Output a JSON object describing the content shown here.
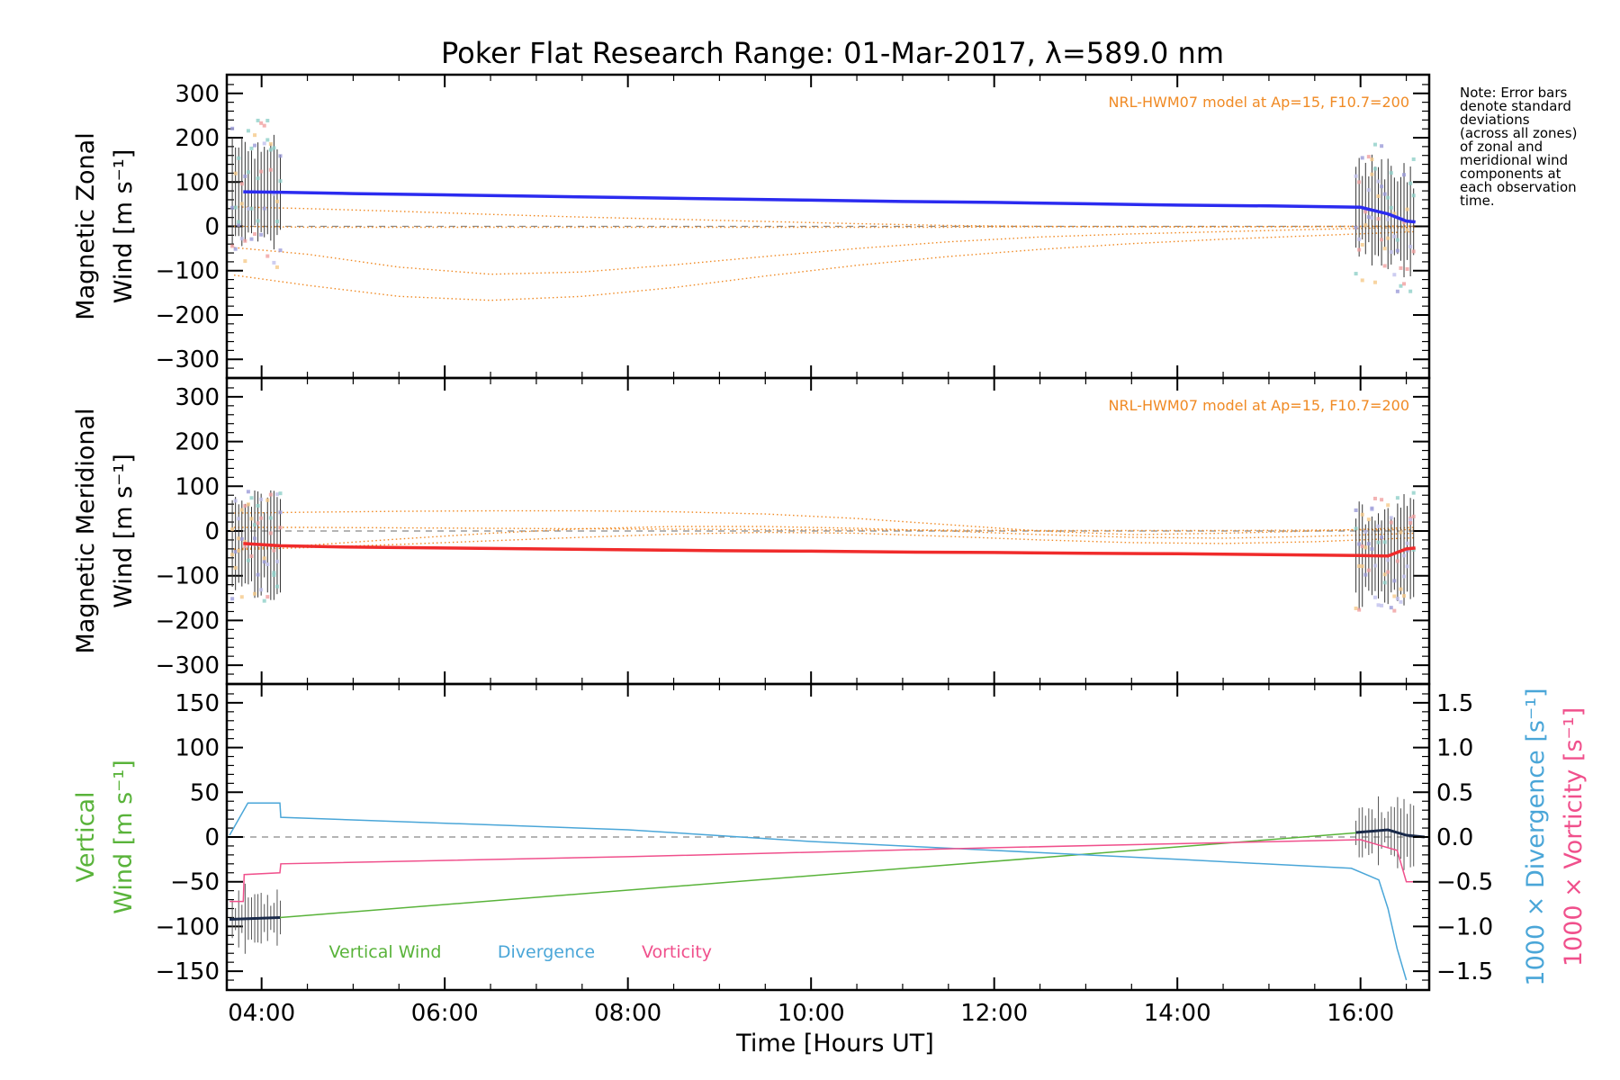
{
  "title": "Poker Flat Research Range: 01-Mar-2017, λ=589.0 nm",
  "note_lines": [
    "Note: Error bars",
    "denote standard",
    "deviations",
    "(across all zones)",
    "of zonal and",
    "meridional wind",
    "components at",
    "each observation",
    "time."
  ],
  "colors": {
    "zonal": "#2b2bf0",
    "meridional": "#f02b2b",
    "model": "#f08a24",
    "vertical": "#59b33a",
    "divergence": "#4aa6d8",
    "vorticity": "#f0508c",
    "zero_line": "#888888"
  },
  "chart_data": [
    {
      "type": "line",
      "panel": "zonal",
      "ylabel_top": "Magnetic Zonal",
      "ylabel_bottom": "Wind [m s⁻¹]",
      "ylim": [
        -330,
        330
      ],
      "yticks": [
        300,
        200,
        100,
        0,
        -100,
        -200,
        -300
      ],
      "yticklabels": [
        "300",
        "200",
        "100",
        "0",
        "−100",
        "−200",
        "−300"
      ],
      "model_label": "NRL-HWM07 model at Ap=15, F10.7=200",
      "series": [
        {
          "kind": "wind",
          "x": [
            3.8,
            4.2,
            5,
            6,
            7,
            8,
            9,
            10,
            11,
            12,
            13,
            14,
            15,
            16,
            16.3,
            16.5,
            16.6
          ],
          "values": [
            78,
            77,
            74,
            71,
            68,
            65,
            62,
            59,
            56,
            54,
            51,
            48,
            46,
            43,
            28,
            12,
            10
          ]
        },
        {
          "kind": "model",
          "x": [
            3.7,
            4.5,
            5.5,
            6.5,
            7.5,
            8.5,
            9.5,
            10.5,
            11.5,
            12.5,
            13.5,
            14.5,
            15.5,
            16.6
          ],
          "values": [
            44,
            40,
            34,
            27,
            21,
            16,
            11,
            6,
            2,
            0,
            -1,
            -1,
            -1,
            0
          ]
        },
        {
          "kind": "model",
          "x": [
            3.7,
            4.5,
            5.5,
            6.5,
            7.5,
            8.5,
            9.5,
            10.5,
            11.5,
            12.5,
            13.5,
            14.5,
            15.5,
            16.6
          ],
          "values": [
            0,
            -2,
            -2,
            -2,
            -2,
            -2,
            -2,
            -2,
            -2,
            -1,
            -1,
            -1,
            0,
            1
          ]
        },
        {
          "kind": "model",
          "x": [
            3.7,
            4.5,
            5.5,
            6.5,
            7.5,
            8.5,
            9.5,
            10.5,
            11.5,
            12.5,
            13.5,
            14.5,
            15.5,
            16.6
          ],
          "values": [
            -48,
            -63,
            -92,
            -108,
            -103,
            -87,
            -68,
            -50,
            -35,
            -24,
            -17,
            -12,
            -7,
            -2
          ]
        },
        {
          "kind": "model",
          "x": [
            3.7,
            4.5,
            5.5,
            6.5,
            7.5,
            8.5,
            9.5,
            10.5,
            11.5,
            12.5,
            13.5,
            14.5,
            15.5,
            16.6
          ],
          "values": [
            -110,
            -133,
            -158,
            -167,
            -158,
            -138,
            -112,
            -88,
            -68,
            -52,
            -39,
            -29,
            -21,
            -12
          ]
        }
      ]
    },
    {
      "type": "line",
      "panel": "meridional",
      "ylabel_top": "Magnetic Meridional",
      "ylabel_bottom": "Wind [m s⁻¹]",
      "ylim": [
        -330,
        330
      ],
      "yticks": [
        300,
        200,
        100,
        0,
        -100,
        -200,
        -300
      ],
      "yticklabels": [
        "300",
        "200",
        "100",
        "0",
        "−100",
        "−200",
        "−300"
      ],
      "model_label": "NRL-HWM07 model at Ap=15, F10.7=200",
      "series": [
        {
          "kind": "wind",
          "x": [
            3.8,
            4.2,
            5,
            6,
            7,
            8,
            9,
            10,
            11,
            12,
            13,
            14,
            15,
            16,
            16.3,
            16.5,
            16.6
          ],
          "values": [
            -28,
            -33,
            -36,
            -38,
            -40,
            -42,
            -44,
            -45,
            -47,
            -48,
            -50,
            -51,
            -53,
            -55,
            -56,
            -40,
            -38
          ]
        },
        {
          "kind": "model",
          "x": [
            3.7,
            4.5,
            5.5,
            6.5,
            7.5,
            8.5,
            9.5,
            10.5,
            11.5,
            12.5,
            13.5,
            14.5,
            15.5,
            16.6
          ],
          "values": [
            40,
            42,
            44,
            45,
            45,
            43,
            38,
            28,
            14,
            0,
            -8,
            -5,
            0,
            8
          ]
        },
        {
          "kind": "model",
          "x": [
            3.7,
            4.5,
            5.5,
            6.5,
            7.5,
            8.5,
            9.5,
            10.5,
            11.5,
            12.5,
            13.5,
            14.5,
            15.5,
            16.6
          ],
          "values": [
            8,
            8,
            7,
            6,
            5,
            4,
            3,
            2,
            2,
            1,
            1,
            1,
            2,
            3
          ]
        },
        {
          "kind": "model",
          "x": [
            3.7,
            4.5,
            5.5,
            6.5,
            7.5,
            8.5,
            9.5,
            10.5,
            11.5,
            12.5,
            13.5,
            14.5,
            15.5,
            16.6
          ],
          "values": [
            -40,
            -32,
            -18,
            -5,
            5,
            10,
            10,
            6,
            0,
            -8,
            -14,
            -16,
            -12,
            -5
          ]
        },
        {
          "kind": "model",
          "x": [
            3.7,
            4.5,
            5.5,
            6.5,
            7.5,
            8.5,
            9.5,
            10.5,
            11.5,
            12.5,
            13.5,
            14.5,
            15.5,
            16.6
          ],
          "values": [
            -42,
            -37,
            -30,
            -22,
            -14,
            -7,
            -3,
            -5,
            -12,
            -20,
            -26,
            -28,
            -24,
            -15
          ]
        }
      ]
    },
    {
      "type": "line",
      "panel": "vertical",
      "ylabel_top": "Vertical",
      "ylabel_bottom": "Wind [m s⁻¹]",
      "ylabel_right1": "1000 × Divergence [s⁻¹]",
      "ylabel_right2": "1000 × Vorticity [s⁻¹]",
      "ylim": [
        -165,
        165
      ],
      "yticks": [
        150,
        100,
        50,
        0,
        -50,
        -100,
        -150
      ],
      "yticklabels": [
        "150",
        "100",
        "50",
        "0",
        "−50",
        "−100",
        "−150"
      ],
      "y2lim": [
        -1.65,
        1.65
      ],
      "y2ticks": [
        1.5,
        1.0,
        0.5,
        0.0,
        -0.5,
        -1.0,
        -1.5
      ],
      "y2ticklabels": [
        "1.5",
        "1.0",
        "0.5",
        "0.0",
        "−0.5",
        "−1.0",
        "−1.5"
      ],
      "xlabel": "Time [Hours UT]",
      "xticks": [
        4,
        6,
        8,
        10,
        12,
        14,
        16
      ],
      "xticklabels": [
        "04:00",
        "06:00",
        "08:00",
        "10:00",
        "12:00",
        "14:00",
        "16:00"
      ],
      "xlim": [
        3.62,
        16.75
      ],
      "series": [
        {
          "name": "Vertical Wind",
          "axis": "left",
          "x": [
            3.65,
            4.2,
            16,
            16.3,
            16.5,
            16.7
          ],
          "values": [
            -92,
            -90,
            5,
            8,
            2,
            0
          ]
        },
        {
          "name": "Divergence",
          "axis": "right",
          "x": [
            3.65,
            3.85,
            4.2,
            4.21,
            8,
            10,
            12,
            14,
            15.9,
            16.2,
            16.3,
            16.4,
            16.5
          ],
          "values": [
            0.02,
            0.38,
            0.38,
            0.22,
            0.08,
            -0.05,
            -0.15,
            -0.25,
            -0.35,
            -0.48,
            -0.8,
            -1.25,
            -1.6
          ]
        },
        {
          "name": "Vorticity",
          "axis": "right",
          "x": [
            3.65,
            3.8,
            3.81,
            4.2,
            4.21,
            8,
            12,
            16,
            16.4,
            16.5,
            16.6
          ],
          "values": [
            -0.72,
            -0.72,
            -0.42,
            -0.4,
            -0.3,
            -0.22,
            -0.12,
            -0.03,
            -0.15,
            -0.5,
            -0.5
          ]
        }
      ]
    }
  ]
}
